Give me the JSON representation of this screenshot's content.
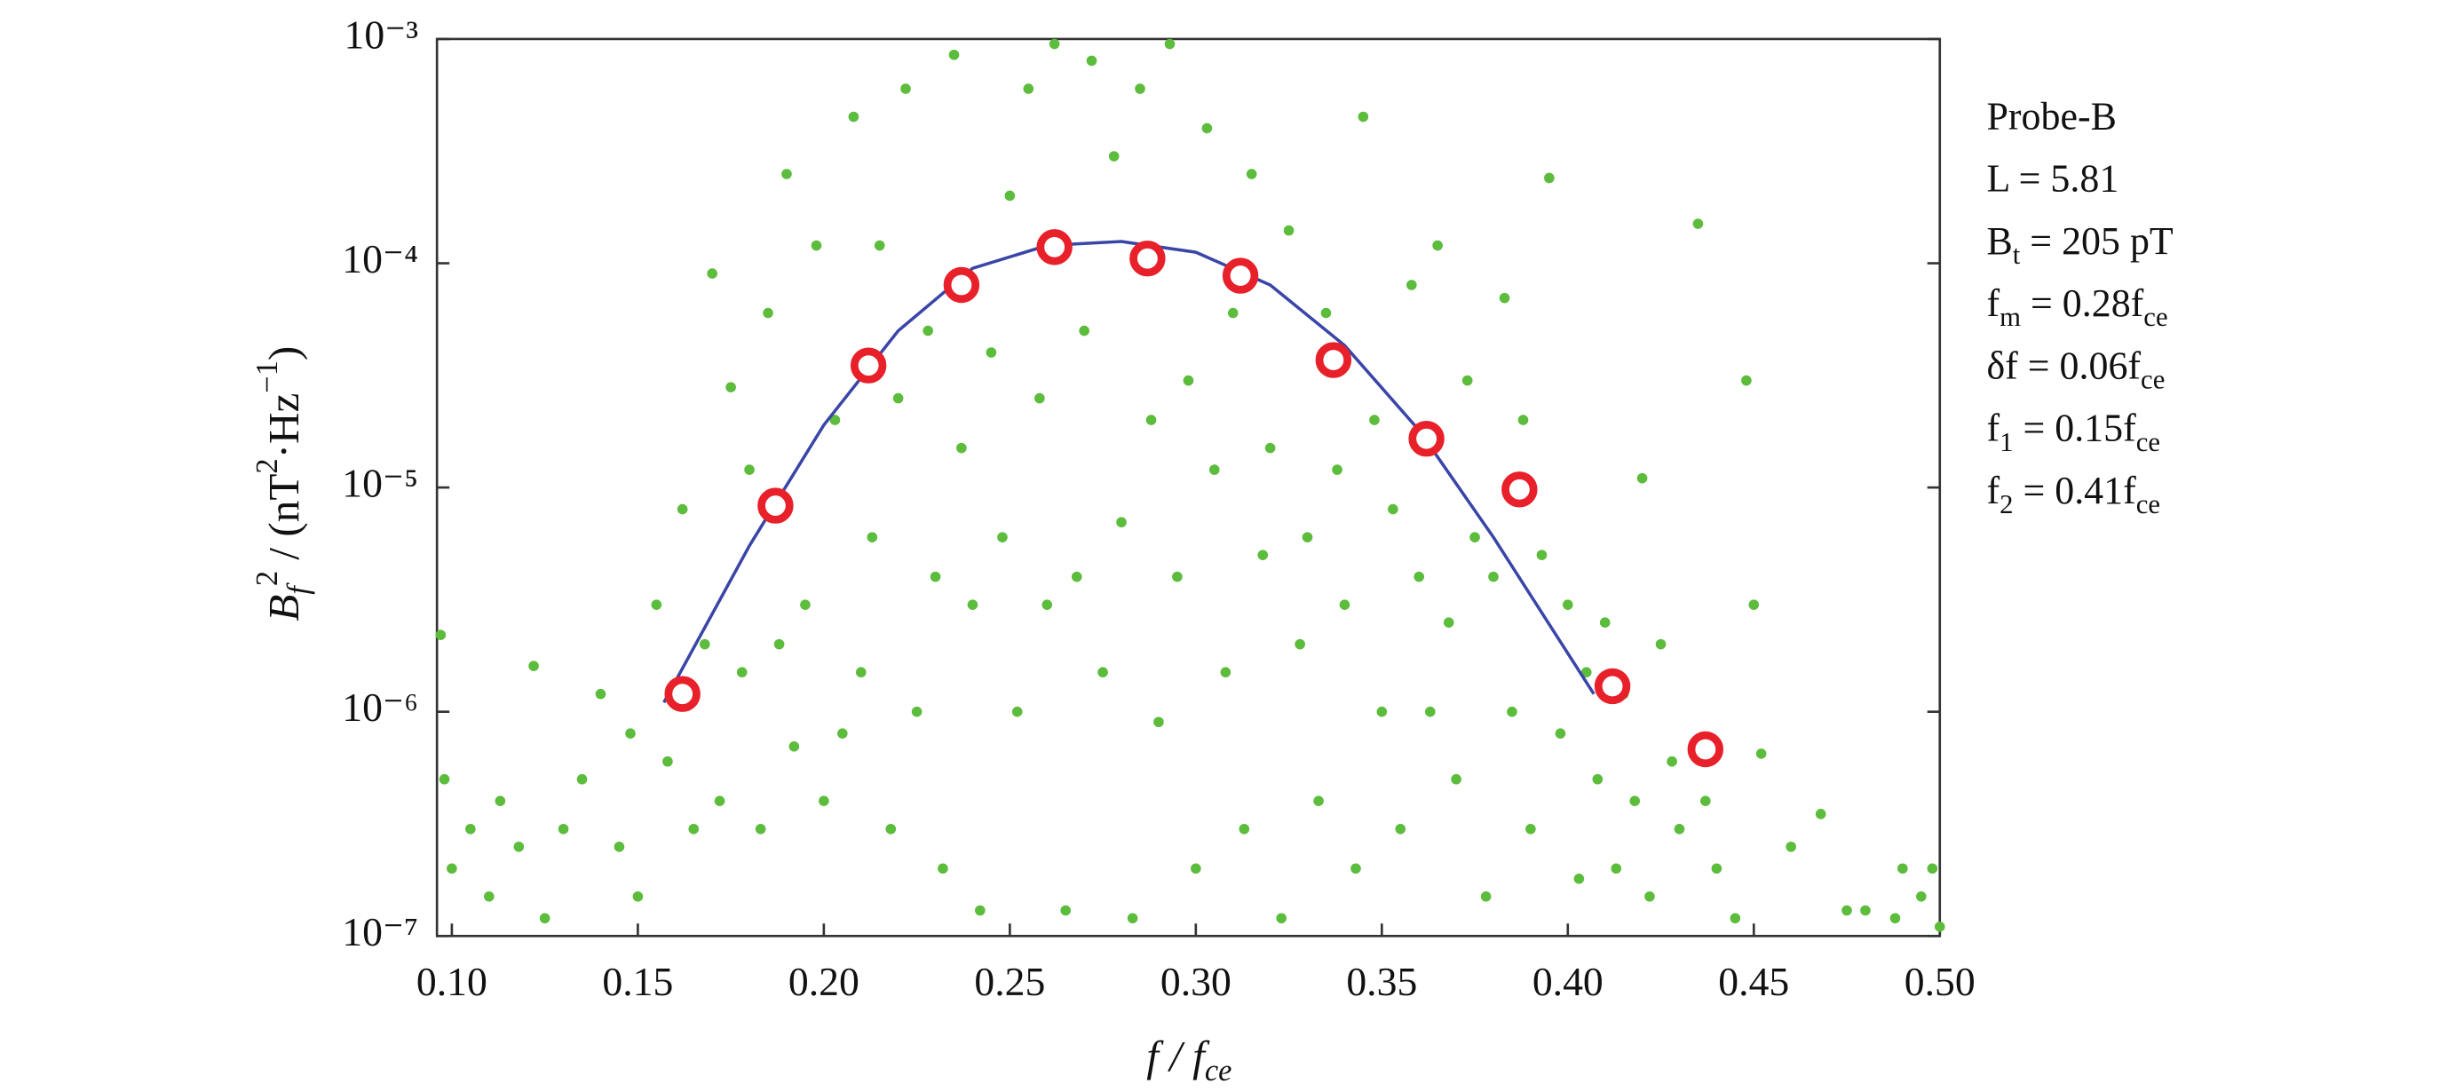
{
  "chart_data": {
    "type": "scatter",
    "log_y": true,
    "xlim": [
      0.096,
      0.5
    ],
    "ylim": [
      1e-07,
      0.001
    ],
    "xticks": [
      {
        "value": 0.1,
        "label": "0.10"
      },
      {
        "value": 0.15,
        "label": "0.15"
      },
      {
        "value": 0.2,
        "label": "0.20"
      },
      {
        "value": 0.25,
        "label": "0.25"
      },
      {
        "value": 0.3,
        "label": "0.30"
      },
      {
        "value": 0.35,
        "label": "0.35"
      },
      {
        "value": 0.4,
        "label": "0.40"
      },
      {
        "value": 0.45,
        "label": "0.45"
      },
      {
        "value": 0.5,
        "label": "0.50"
      }
    ],
    "yticks": [
      {
        "value": 1e-07,
        "label": "10⁻⁷"
      },
      {
        "value": 1e-06,
        "label": "10⁻⁶"
      },
      {
        "value": 1e-05,
        "label": "10⁻⁵"
      },
      {
        "value": 0.0001,
        "label": "10⁻⁴"
      },
      {
        "value": 0.001,
        "label": "10⁻³"
      }
    ],
    "x_label": [
      "f / f",
      "ce"
    ],
    "y_label": [
      "B",
      "f",
      "2",
      " / (nT",
      "2",
      "·Hz",
      "−1",
      ")"
    ],
    "annotations": [
      [
        "Probe-B"
      ],
      [
        "L = 5.81"
      ],
      [
        "B",
        "t",
        " = 205 pT"
      ],
      [
        "f",
        "m",
        " = 0.28f",
        "ce"
      ],
      [
        "δf = 0.06f",
        "ce"
      ],
      [
        "f",
        "1",
        " = 0.15f",
        "ce"
      ],
      [
        "f",
        "2",
        " = 0.41f",
        "ce"
      ]
    ],
    "series": [
      {
        "mode": "markers",
        "marker": "dot",
        "color": "#5cbc3c",
        "x": [
          0.097,
          0.098,
          0.1,
          0.105,
          0.11,
          0.113,
          0.118,
          0.122,
          0.125,
          0.13,
          0.135,
          0.14,
          0.145,
          0.148,
          0.15,
          0.155,
          0.158,
          0.162,
          0.165,
          0.168,
          0.17,
          0.172,
          0.175,
          0.178,
          0.18,
          0.183,
          0.185,
          0.188,
          0.19,
          0.192,
          0.195,
          0.198,
          0.2,
          0.203,
          0.205,
          0.208,
          0.21,
          0.213,
          0.215,
          0.218,
          0.22,
          0.222,
          0.225,
          0.228,
          0.23,
          0.232,
          0.235,
          0.237,
          0.24,
          0.242,
          0.245,
          0.248,
          0.25,
          0.252,
          0.255,
          0.258,
          0.26,
          0.262,
          0.265,
          0.268,
          0.27,
          0.272,
          0.275,
          0.278,
          0.28,
          0.283,
          0.285,
          0.288,
          0.29,
          0.293,
          0.295,
          0.298,
          0.3,
          0.303,
          0.305,
          0.308,
          0.31,
          0.313,
          0.315,
          0.318,
          0.32,
          0.323,
          0.325,
          0.328,
          0.33,
          0.333,
          0.335,
          0.338,
          0.34,
          0.343,
          0.345,
          0.348,
          0.35,
          0.353,
          0.355,
          0.358,
          0.36,
          0.363,
          0.365,
          0.368,
          0.37,
          0.373,
          0.375,
          0.378,
          0.38,
          0.383,
          0.385,
          0.388,
          0.39,
          0.393,
          0.395,
          0.398,
          0.4,
          0.403,
          0.405,
          0.408,
          0.41,
          0.413,
          0.415,
          0.418,
          0.42,
          0.422,
          0.425,
          0.428,
          0.43,
          0.435,
          0.437,
          0.44,
          0.445,
          0.448,
          0.45,
          0.452,
          0.46,
          0.468,
          0.475,
          0.48,
          0.488,
          0.49,
          0.495,
          0.498,
          0.5
        ],
        "values": [
          2.2e-06,
          5e-07,
          2e-07,
          3e-07,
          1.5e-07,
          4e-07,
          2.5e-07,
          1.6e-06,
          1.2e-07,
          3e-07,
          5e-07,
          1.2e-06,
          2.5e-07,
          8e-07,
          1.5e-07,
          3e-06,
          6e-07,
          8e-06,
          3e-07,
          2e-06,
          9e-05,
          4e-07,
          2.8e-05,
          1.5e-06,
          1.2e-05,
          3e-07,
          6e-05,
          2e-06,
          0.00025,
          7e-07,
          3e-06,
          0.00012,
          4e-07,
          2e-05,
          8e-07,
          0.00045,
          1.5e-06,
          6e-06,
          0.00012,
          3e-07,
          2.5e-05,
          0.0006,
          1e-06,
          5e-05,
          4e-06,
          2e-07,
          0.00085,
          1.5e-05,
          3e-06,
          1.3e-07,
          4e-05,
          6e-06,
          0.0002,
          1e-06,
          0.0006,
          2.5e-05,
          3e-06,
          0.00095,
          1.3e-07,
          4e-06,
          5e-05,
          0.0008,
          1.5e-06,
          0.0003,
          7e-06,
          1.2e-07,
          0.0006,
          2e-05,
          9e-07,
          0.00095,
          4e-06,
          3e-05,
          2e-07,
          0.0004,
          1.2e-05,
          1.5e-06,
          6e-05,
          3e-07,
          0.00025,
          5e-06,
          1.5e-05,
          1.2e-07,
          0.00014,
          2e-06,
          6e-06,
          4e-07,
          6e-05,
          1.2e-05,
          3e-06,
          2e-07,
          0.00045,
          2e-05,
          1e-06,
          8e-06,
          3e-07,
          8e-05,
          4e-06,
          1e-06,
          0.00012,
          2.5e-06,
          5e-07,
          3e-05,
          6e-06,
          1.5e-07,
          4e-06,
          7e-05,
          1e-06,
          2e-05,
          3e-07,
          5e-06,
          0.00024,
          8e-07,
          3e-06,
          1.8e-07,
          1.5e-06,
          5e-07,
          2.5e-06,
          2e-07,
          1.2e-06,
          4e-07,
          1.1e-05,
          1.5e-07,
          2e-06,
          6e-07,
          3e-07,
          0.00015,
          4e-07,
          2e-07,
          1.2e-07,
          3e-05,
          3e-06,
          6.5e-07,
          2.5e-07,
          3.5e-07,
          1.3e-07,
          1.3e-07,
          1.2e-07,
          2e-07,
          1.5e-07,
          2e-07,
          1.1e-07
        ]
      },
      {
        "mode": "line",
        "color": "#3a45a8",
        "x": [
          0.157,
          0.18,
          0.2,
          0.22,
          0.24,
          0.26,
          0.28,
          0.3,
          0.32,
          0.34,
          0.36,
          0.38,
          0.407
        ],
        "values": [
          1.1e-06,
          5.5e-06,
          1.9e-05,
          5e-05,
          9.5e-05,
          0.00012,
          0.000125,
          0.000112,
          8e-05,
          4.3e-05,
          1.8e-05,
          6e-06,
          1.2e-06
        ]
      },
      {
        "mode": "markers",
        "marker": "ring",
        "color": "#e8202a",
        "x": [
          0.162,
          0.187,
          0.212,
          0.237,
          0.262,
          0.287,
          0.312,
          0.337,
          0.362,
          0.387,
          0.412,
          0.437
        ],
        "values": [
          1.2e-06,
          8.3e-06,
          3.5e-05,
          8e-05,
          0.000118,
          0.000105,
          8.8e-05,
          3.7e-05,
          1.65e-05,
          9.8e-06,
          1.3e-06,
          6.8e-07
        ]
      }
    ]
  }
}
